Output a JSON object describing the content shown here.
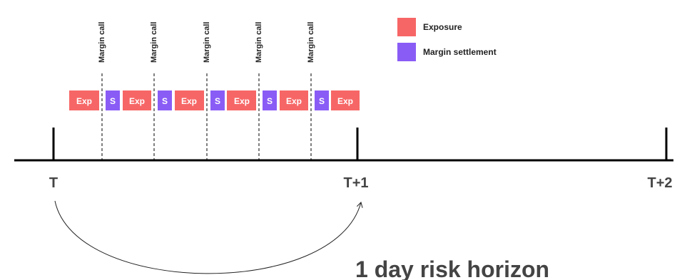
{
  "diagram": {
    "colors": {
      "exposure": "#f76666",
      "settlement": "#8a5cf6",
      "axis": "#000000",
      "tick_label": "#444444",
      "caption": "#444444"
    },
    "legend": [
      {
        "label": "Exposure",
        "color": "#f76666"
      },
      {
        "label": "Margin settlement",
        "color": "#8a5cf6"
      }
    ],
    "ticks": [
      "T",
      "T+1",
      "T+2"
    ],
    "margin_calls": [
      "Margin call",
      "Margin call",
      "Margin call",
      "Margin call",
      "Margin call"
    ],
    "blocks": [
      "Exp",
      "S",
      "Exp",
      "S",
      "Exp",
      "S",
      "Exp",
      "S",
      "Exp",
      "S",
      "Exp"
    ],
    "horizon_label": "1 day risk horizon"
  }
}
